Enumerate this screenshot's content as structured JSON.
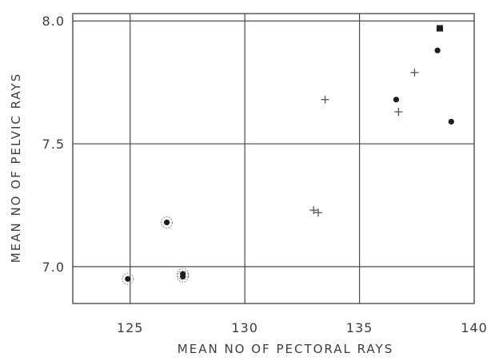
{
  "chart_data": {
    "type": "scatter",
    "title": "",
    "xlabel": "MEAN NO OF PECTORAL RAYS",
    "ylabel": "MEAN NO OF PELVIC RAYS",
    "xlim": [
      122.5,
      140
    ],
    "ylim": [
      6.85,
      8.03
    ],
    "x_ticks": [
      125,
      130,
      135,
      140
    ],
    "x_tick_labels": [
      "125",
      "130",
      "135",
      "140"
    ],
    "y_ticks": [
      7.0,
      7.5,
      8.0
    ],
    "y_tick_labels": [
      "7.0",
      "7.5",
      "8.0"
    ],
    "grid": true,
    "series": [
      {
        "marker": "circled-dot",
        "points": [
          {
            "x": 124.9,
            "y": 6.95
          },
          {
            "x": 126.6,
            "y": 7.18
          },
          {
            "x": 127.3,
            "y": 6.97
          },
          {
            "x": 127.3,
            "y": 6.96
          }
        ]
      },
      {
        "marker": "dot",
        "points": [
          {
            "x": 136.6,
            "y": 7.68
          },
          {
            "x": 138.4,
            "y": 7.88
          },
          {
            "x": 139.0,
            "y": 7.59
          }
        ]
      },
      {
        "marker": "plus",
        "points": [
          {
            "x": 133.5,
            "y": 7.68
          },
          {
            "x": 133.0,
            "y": 7.23
          },
          {
            "x": 133.2,
            "y": 7.22
          },
          {
            "x": 136.7,
            "y": 7.63
          },
          {
            "x": 137.4,
            "y": 7.79
          }
        ]
      },
      {
        "marker": "square",
        "points": [
          {
            "x": 138.5,
            "y": 7.97
          }
        ]
      }
    ]
  }
}
